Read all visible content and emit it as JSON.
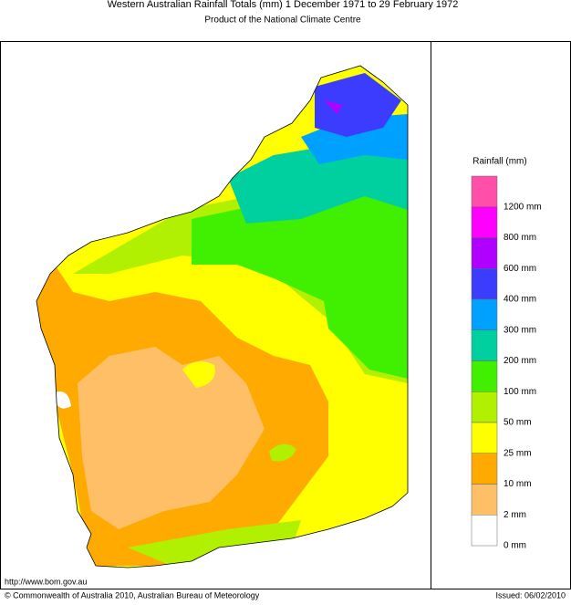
{
  "header": {
    "title": "Western Australian Rainfall Totals (mm) 1 December 1971 to 29 February 1972",
    "subtitle": "Product of the National Climate Centre"
  },
  "legend": {
    "title": "Rainfall (mm)",
    "colors": [
      "#ff4fa8",
      "#ff00ff",
      "#b000ff",
      "#3c3cff",
      "#00a0ff",
      "#00d0a0",
      "#40f000",
      "#b0f000",
      "#ffff00",
      "#ffaa00",
      "#ffbf66",
      "#ffffff"
    ],
    "labels": [
      "1200 mm",
      "800 mm",
      "600 mm",
      "400 mm",
      "300 mm",
      "200 mm",
      "100 mm",
      "50 mm",
      "25 mm",
      "10 mm",
      "2 mm",
      "0 mm"
    ]
  },
  "footer": {
    "url": "http://www.bom.gov.au",
    "copyright": "© Commonwealth of Australia 2010, Australian Bureau of Meteorology",
    "issued": "Issued: 06/02/2010"
  }
}
